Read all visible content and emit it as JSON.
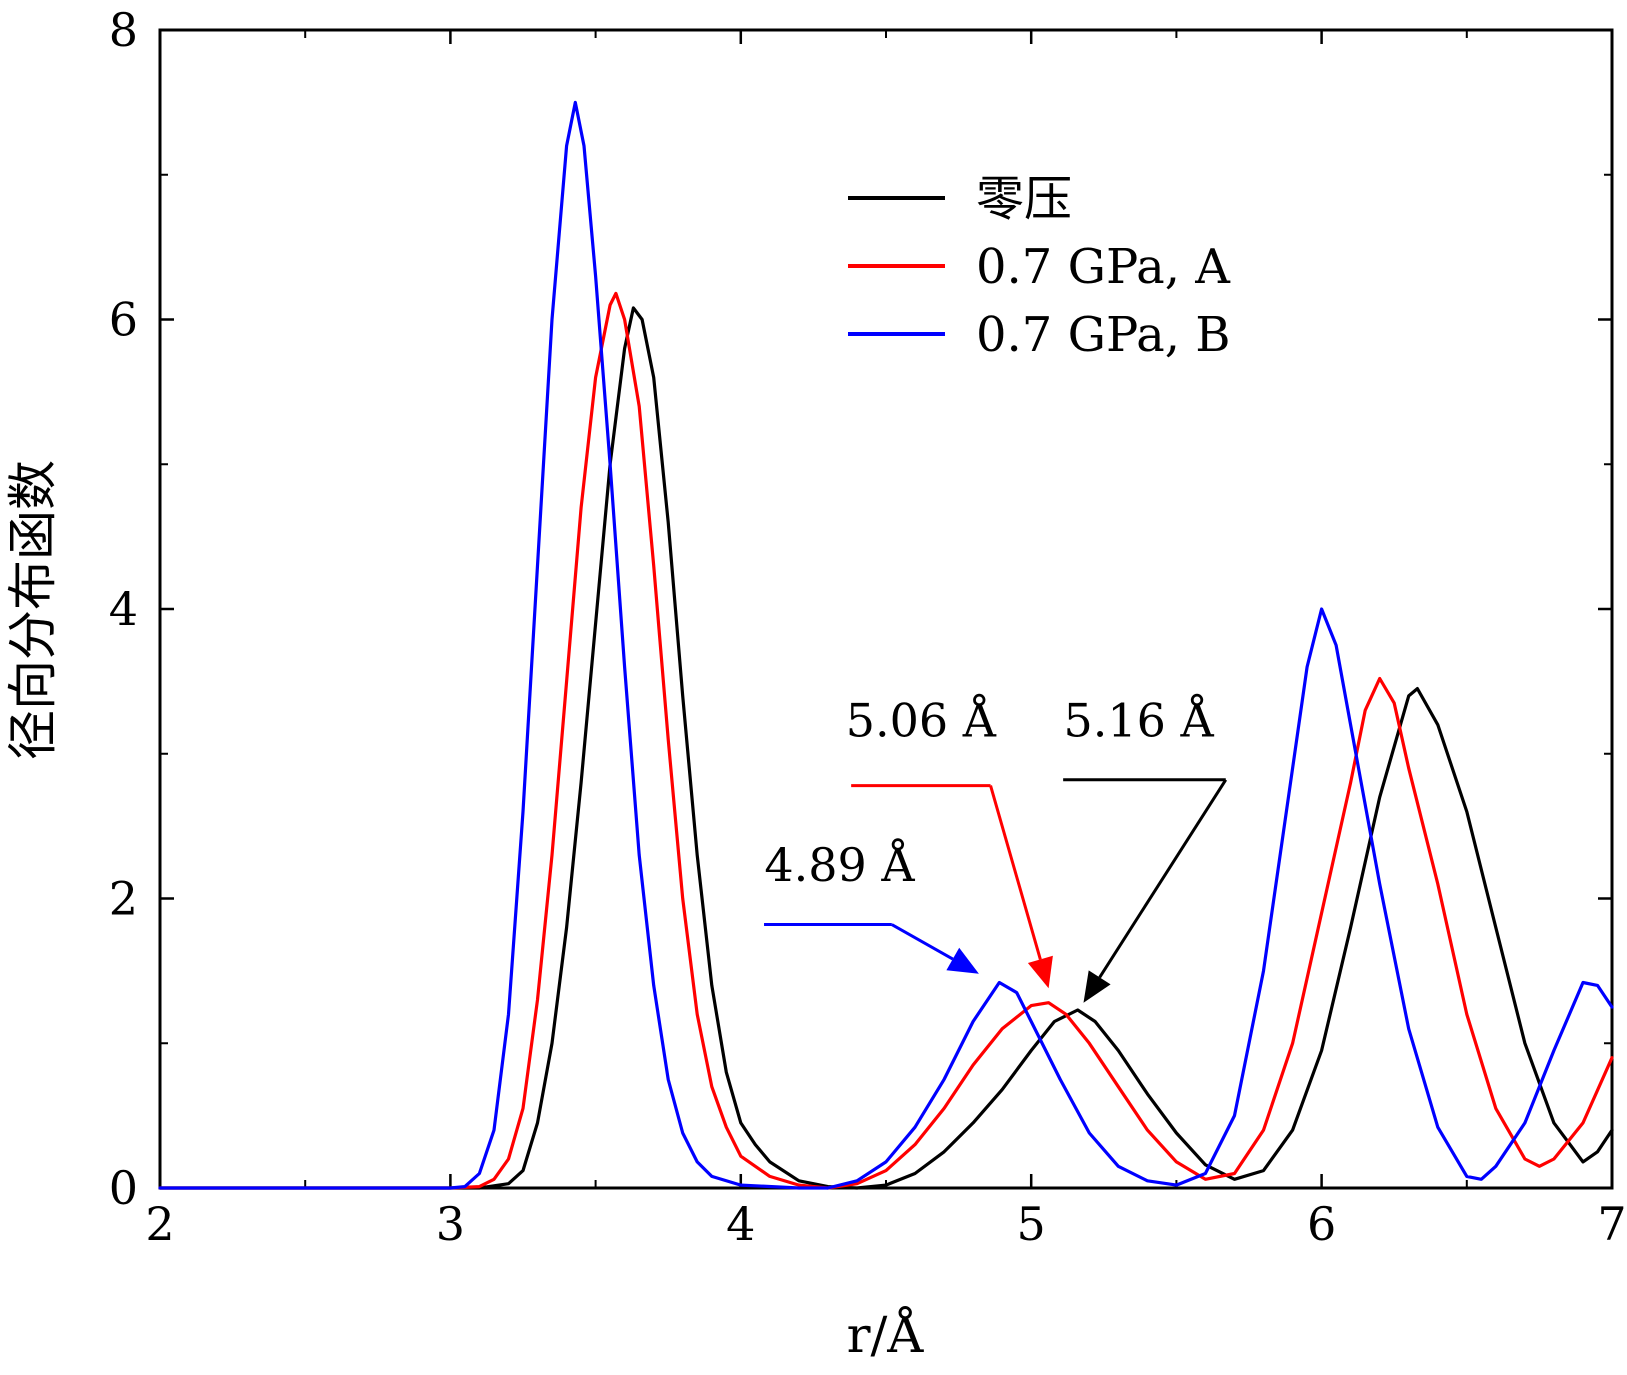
{
  "chart_data": {
    "type": "line",
    "title": "",
    "xlabel": "r/Å",
    "ylabel": "径向分布函数",
    "xlim": [
      2,
      7
    ],
    "ylim": [
      0,
      8
    ],
    "x_ticks": [
      2,
      3,
      4,
      5,
      6,
      7
    ],
    "y_ticks": [
      0,
      2,
      4,
      6,
      8
    ],
    "x_minor_ticks": [
      2.5,
      3.5,
      4.5,
      5.5,
      6.5
    ],
    "y_minor_ticks": [
      1,
      3,
      5,
      7
    ],
    "legend_position": "top-right",
    "series": [
      {
        "name": "零压",
        "color": "#000000",
        "points": [
          [
            2.0,
            0
          ],
          [
            3.0,
            0
          ],
          [
            3.1,
            0
          ],
          [
            3.2,
            0.03
          ],
          [
            3.25,
            0.12
          ],
          [
            3.3,
            0.45
          ],
          [
            3.35,
            1.0
          ],
          [
            3.4,
            1.8
          ],
          [
            3.45,
            2.8
          ],
          [
            3.5,
            3.9
          ],
          [
            3.55,
            5.0
          ],
          [
            3.6,
            5.8
          ],
          [
            3.63,
            6.08
          ],
          [
            3.66,
            6.0
          ],
          [
            3.7,
            5.6
          ],
          [
            3.75,
            4.6
          ],
          [
            3.8,
            3.4
          ],
          [
            3.85,
            2.3
          ],
          [
            3.9,
            1.4
          ],
          [
            3.95,
            0.8
          ],
          [
            4.0,
            0.45
          ],
          [
            4.05,
            0.3
          ],
          [
            4.1,
            0.18
          ],
          [
            4.2,
            0.05
          ],
          [
            4.3,
            0.01
          ],
          [
            4.4,
            0.0
          ],
          [
            4.5,
            0.02
          ],
          [
            4.6,
            0.1
          ],
          [
            4.7,
            0.25
          ],
          [
            4.8,
            0.45
          ],
          [
            4.9,
            0.68
          ],
          [
            5.0,
            0.95
          ],
          [
            5.08,
            1.15
          ],
          [
            5.16,
            1.23
          ],
          [
            5.22,
            1.15
          ],
          [
            5.3,
            0.95
          ],
          [
            5.4,
            0.65
          ],
          [
            5.5,
            0.38
          ],
          [
            5.6,
            0.16
          ],
          [
            5.7,
            0.06
          ],
          [
            5.8,
            0.12
          ],
          [
            5.9,
            0.4
          ],
          [
            6.0,
            0.95
          ],
          [
            6.1,
            1.8
          ],
          [
            6.2,
            2.7
          ],
          [
            6.3,
            3.4
          ],
          [
            6.33,
            3.45
          ],
          [
            6.4,
            3.2
          ],
          [
            6.5,
            2.6
          ],
          [
            6.6,
            1.8
          ],
          [
            6.7,
            1.0
          ],
          [
            6.8,
            0.45
          ],
          [
            6.9,
            0.18
          ],
          [
            6.95,
            0.25
          ],
          [
            7.0,
            0.4
          ]
        ]
      },
      {
        "name": "0.7 GPa, A",
        "color": "#ff0000",
        "points": [
          [
            2.0,
            0
          ],
          [
            3.0,
            0
          ],
          [
            3.1,
            0.01
          ],
          [
            3.15,
            0.06
          ],
          [
            3.2,
            0.2
          ],
          [
            3.25,
            0.55
          ],
          [
            3.3,
            1.3
          ],
          [
            3.35,
            2.3
          ],
          [
            3.4,
            3.5
          ],
          [
            3.45,
            4.7
          ],
          [
            3.5,
            5.6
          ],
          [
            3.55,
            6.1
          ],
          [
            3.57,
            6.18
          ],
          [
            3.6,
            6.0
          ],
          [
            3.65,
            5.4
          ],
          [
            3.7,
            4.3
          ],
          [
            3.75,
            3.1
          ],
          [
            3.8,
            2.0
          ],
          [
            3.85,
            1.2
          ],
          [
            3.9,
            0.7
          ],
          [
            3.95,
            0.42
          ],
          [
            4.0,
            0.22
          ],
          [
            4.1,
            0.08
          ],
          [
            4.2,
            0.02
          ],
          [
            4.3,
            0.0
          ],
          [
            4.4,
            0.03
          ],
          [
            4.5,
            0.12
          ],
          [
            4.6,
            0.3
          ],
          [
            4.7,
            0.55
          ],
          [
            4.8,
            0.85
          ],
          [
            4.9,
            1.1
          ],
          [
            5.0,
            1.26
          ],
          [
            5.06,
            1.28
          ],
          [
            5.12,
            1.2
          ],
          [
            5.2,
            1.0
          ],
          [
            5.3,
            0.7
          ],
          [
            5.4,
            0.4
          ],
          [
            5.5,
            0.18
          ],
          [
            5.6,
            0.06
          ],
          [
            5.7,
            0.1
          ],
          [
            5.8,
            0.4
          ],
          [
            5.9,
            1.0
          ],
          [
            6.0,
            1.9
          ],
          [
            6.1,
            2.8
          ],
          [
            6.15,
            3.3
          ],
          [
            6.2,
            3.52
          ],
          [
            6.25,
            3.35
          ],
          [
            6.3,
            2.9
          ],
          [
            6.4,
            2.1
          ],
          [
            6.5,
            1.2
          ],
          [
            6.6,
            0.55
          ],
          [
            6.7,
            0.2
          ],
          [
            6.75,
            0.15
          ],
          [
            6.8,
            0.2
          ],
          [
            6.9,
            0.45
          ],
          [
            7.0,
            0.9
          ]
        ]
      },
      {
        "name": "0.7 GPa, B",
        "color": "#0000ff",
        "points": [
          [
            2.0,
            0
          ],
          [
            3.0,
            0
          ],
          [
            3.05,
            0.01
          ],
          [
            3.1,
            0.1
          ],
          [
            3.15,
            0.4
          ],
          [
            3.2,
            1.2
          ],
          [
            3.25,
            2.6
          ],
          [
            3.3,
            4.3
          ],
          [
            3.35,
            6.0
          ],
          [
            3.4,
            7.2
          ],
          [
            3.43,
            7.5
          ],
          [
            3.46,
            7.2
          ],
          [
            3.5,
            6.3
          ],
          [
            3.55,
            5.0
          ],
          [
            3.6,
            3.6
          ],
          [
            3.65,
            2.3
          ],
          [
            3.7,
            1.4
          ],
          [
            3.75,
            0.75
          ],
          [
            3.8,
            0.38
          ],
          [
            3.85,
            0.18
          ],
          [
            3.9,
            0.08
          ],
          [
            4.0,
            0.02
          ],
          [
            4.2,
            0.0
          ],
          [
            4.3,
            0.0
          ],
          [
            4.4,
            0.05
          ],
          [
            4.5,
            0.18
          ],
          [
            4.6,
            0.42
          ],
          [
            4.7,
            0.75
          ],
          [
            4.8,
            1.15
          ],
          [
            4.89,
            1.42
          ],
          [
            4.95,
            1.35
          ],
          [
            5.0,
            1.15
          ],
          [
            5.1,
            0.75
          ],
          [
            5.2,
            0.38
          ],
          [
            5.3,
            0.15
          ],
          [
            5.4,
            0.05
          ],
          [
            5.5,
            0.02
          ],
          [
            5.6,
            0.1
          ],
          [
            5.7,
            0.5
          ],
          [
            5.8,
            1.5
          ],
          [
            5.9,
            2.9
          ],
          [
            5.95,
            3.6
          ],
          [
            6.0,
            4.0
          ],
          [
            6.05,
            3.75
          ],
          [
            6.1,
            3.2
          ],
          [
            6.2,
            2.1
          ],
          [
            6.3,
            1.1
          ],
          [
            6.4,
            0.42
          ],
          [
            6.5,
            0.08
          ],
          [
            6.55,
            0.06
          ],
          [
            6.6,
            0.15
          ],
          [
            6.7,
            0.45
          ],
          [
            6.8,
            0.95
          ],
          [
            6.9,
            1.42
          ],
          [
            6.95,
            1.4
          ],
          [
            7.0,
            1.25
          ]
        ]
      }
    ],
    "annotations": [
      {
        "text": "4.89 Å",
        "color": "#0000ff",
        "label_at": [
          4.34,
          2.12
        ],
        "line_from": [
          4.08,
          1.82
        ],
        "line_knee": [
          4.52,
          1.82
        ],
        "arrow_to": [
          4.82,
          1.48
        ]
      },
      {
        "text": "5.06 Å",
        "color": "#ff0000",
        "label_at": [
          4.62,
          3.12
        ],
        "line_from": [
          4.38,
          2.78
        ],
        "line_knee": [
          4.86,
          2.78
        ],
        "arrow_to": [
          5.06,
          1.38
        ]
      },
      {
        "text": "5.16 Å",
        "color": "#000000",
        "label_at": [
          5.37,
          3.12
        ],
        "line_from": [
          5.11,
          2.82
        ],
        "line_knee": [
          5.67,
          2.82
        ],
        "arrow_to": [
          5.18,
          1.28
        ]
      }
    ]
  }
}
